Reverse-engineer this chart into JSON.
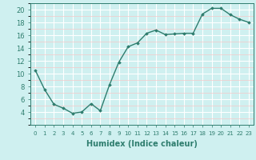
{
  "x": [
    0,
    1,
    2,
    3,
    4,
    5,
    6,
    7,
    8,
    9,
    10,
    11,
    12,
    13,
    14,
    15,
    16,
    17,
    18,
    19,
    20,
    21,
    22,
    23
  ],
  "y": [
    10.5,
    7.5,
    5.2,
    4.6,
    3.8,
    4.0,
    5.3,
    4.2,
    8.3,
    11.8,
    14.2,
    14.8,
    16.3,
    16.8,
    16.1,
    16.2,
    16.3,
    16.3,
    19.3,
    20.2,
    20.2,
    19.2,
    18.5,
    18.0
  ],
  "xlabel": "Humidex (Indice chaleur)",
  "ylim": [
    2,
    21
  ],
  "yticks": [
    4,
    6,
    8,
    10,
    12,
    14,
    16,
    18,
    20
  ],
  "line_color": "#2e7d6e",
  "marker": "D",
  "marker_size": 1.8,
  "bg_color": "#cff0f0",
  "grid_major_color": "#ffffff",
  "grid_minor_color": "#f5c8c8",
  "spine_color": "#2e7d6e",
  "tick_color": "#2e7d6e",
  "label_color": "#2e7d6e",
  "xlabel_fontsize": 7,
  "ytick_fontsize": 6,
  "xtick_fontsize": 5
}
